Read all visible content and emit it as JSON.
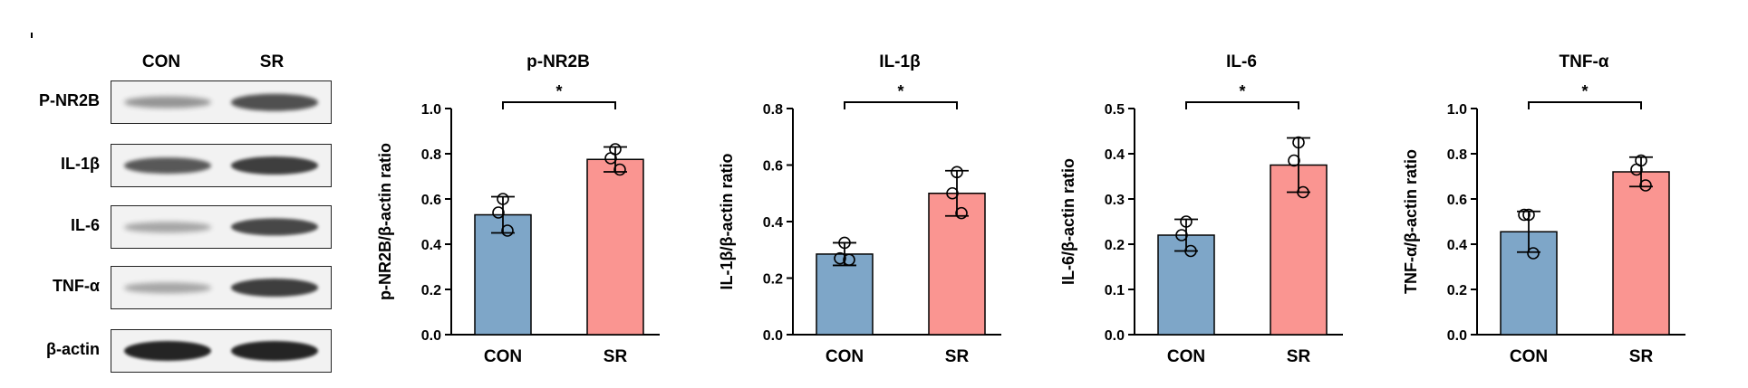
{
  "blot": {
    "columns": [
      "CON",
      "SR"
    ],
    "rows": [
      {
        "label": "P-NR2B",
        "con_intensity": 0.35,
        "sr_intensity": 0.75
      },
      {
        "label": "IL-1β",
        "con_intensity": 0.7,
        "sr_intensity": 0.85
      },
      {
        "label": "IL-6",
        "con_intensity": 0.25,
        "sr_intensity": 0.8
      },
      {
        "label": "TNF-α",
        "con_intensity": 0.25,
        "sr_intensity": 0.85
      },
      {
        "label": "β-actin",
        "con_intensity": 1.0,
        "sr_intensity": 1.0
      }
    ]
  },
  "colors": {
    "con": "#7ea6c8",
    "sr": "#fa9591",
    "band": "#1a1a1a"
  },
  "chart_data": [
    {
      "type": "bar",
      "title": "p-NR2B",
      "ylabel": "p-NR2B/β-actin ratio",
      "categories": [
        "CON",
        "SR"
      ],
      "values": [
        0.53,
        0.775
      ],
      "errors": [
        0.08,
        0.055
      ],
      "points": [
        [
          0.6,
          0.54,
          0.46
        ],
        [
          0.82,
          0.78,
          0.73
        ]
      ],
      "ylim": [
        0,
        1.0
      ],
      "yticks": [
        "0.0",
        "0.2",
        "0.4",
        "0.6",
        "0.8",
        "1.0"
      ],
      "significance": "*"
    },
    {
      "type": "bar",
      "title": "IL-1β",
      "ylabel": "IL-1β/β-actin ratio",
      "categories": [
        "CON",
        "SR"
      ],
      "values": [
        0.285,
        0.5
      ],
      "errors": [
        0.04,
        0.08
      ],
      "points": [
        [
          0.325,
          0.27,
          0.265
        ],
        [
          0.575,
          0.5,
          0.43
        ]
      ],
      "ylim": [
        0,
        0.8
      ],
      "yticks": [
        "0.0",
        "0.2",
        "0.4",
        "0.6",
        "0.8"
      ],
      "significance": "*"
    },
    {
      "type": "bar",
      "title": "IL-6",
      "ylabel": "IL-6/β-actin ratio",
      "categories": [
        "CON",
        "SR"
      ],
      "values": [
        0.22,
        0.375
      ],
      "errors": [
        0.035,
        0.06
      ],
      "points": [
        [
          0.25,
          0.22,
          0.185
        ],
        [
          0.425,
          0.385,
          0.315
        ]
      ],
      "ylim": [
        0,
        0.5
      ],
      "yticks": [
        "0.0",
        "0.1",
        "0.2",
        "0.3",
        "0.4",
        "0.5"
      ],
      "significance": "*"
    },
    {
      "type": "bar",
      "title": "TNF-α",
      "ylabel": "TNF-α/β-actin ratio",
      "categories": [
        "CON",
        "SR"
      ],
      "values": [
        0.455,
        0.72
      ],
      "errors": [
        0.09,
        0.065
      ],
      "points": [
        [
          0.53,
          0.53,
          0.36
        ],
        [
          0.77,
          0.73,
          0.66
        ]
      ],
      "ylim": [
        0,
        1.0
      ],
      "yticks": [
        "0.0",
        "0.2",
        "0.4",
        "0.6",
        "0.8",
        "1.0"
      ],
      "significance": "*"
    }
  ]
}
